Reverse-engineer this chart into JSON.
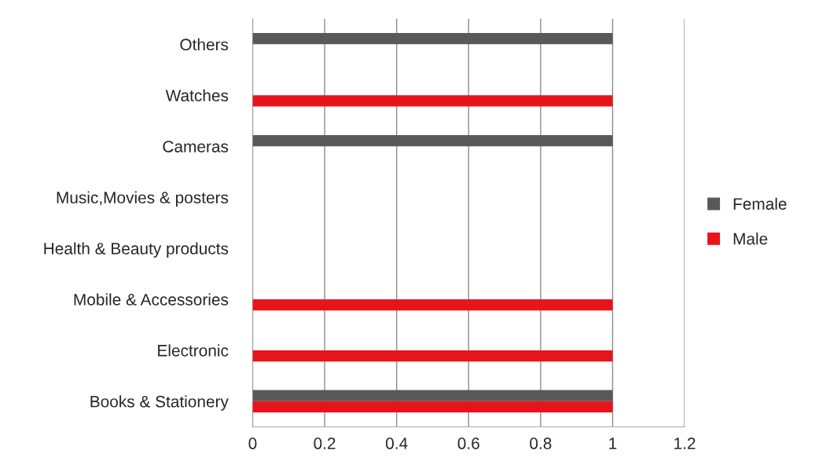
{
  "chart_data": {
    "type": "bar",
    "orientation": "horizontal",
    "categories": [
      "Others",
      "Watches",
      "Cameras",
      "Music,Movies & posters",
      "Health & Beauty products",
      "Mobile & Accessories",
      "Electronic",
      "Books & Stationery"
    ],
    "series": [
      {
        "name": "Female",
        "color": "#595959",
        "values": [
          1,
          0,
          1,
          0,
          0,
          0,
          0,
          1
        ]
      },
      {
        "name": "Male",
        "color": "#e8141b",
        "values": [
          0,
          1,
          0,
          0,
          0,
          1,
          1,
          1
        ]
      }
    ],
    "xlim": [
      0,
      1.2
    ],
    "xticks": [
      0,
      0.2,
      0.4,
      0.6,
      0.8,
      1,
      1.2
    ],
    "grid": "x",
    "legend": "right"
  }
}
